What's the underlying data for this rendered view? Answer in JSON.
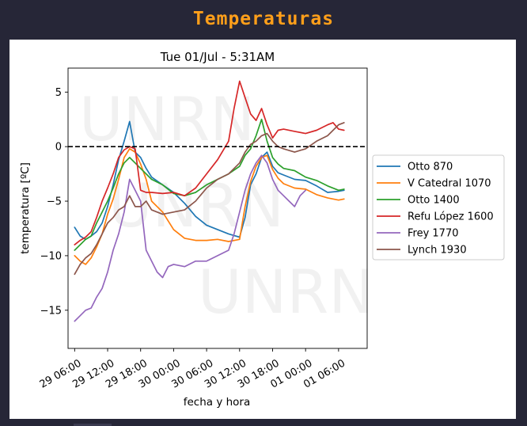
{
  "app": {
    "title": "Temperaturas"
  },
  "chart_data": {
    "type": "line",
    "title": "Tue 01/Jul - 5:31AM",
    "xlabel": "fecha y hora",
    "ylabel": "temperatura [ºC]",
    "watermark": "UNRN",
    "x_unit": "hours since 29 06:00",
    "xlim": [
      -1.2,
      53.2
    ],
    "ylim": [
      -18.5,
      7.2
    ],
    "x_ticks": [
      {
        "value": 0,
        "label": "29 06:00"
      },
      {
        "value": 6,
        "label": "29 12:00"
      },
      {
        "value": 12,
        "label": "29 18:00"
      },
      {
        "value": 18,
        "label": "30 00:00"
      },
      {
        "value": 24,
        "label": "30 06:00"
      },
      {
        "value": 30,
        "label": "30 12:00"
      },
      {
        "value": 36,
        "label": "30 18:00"
      },
      {
        "value": 42,
        "label": "01 00:00"
      },
      {
        "value": 48,
        "label": "01 06:00"
      }
    ],
    "y_ticks": [
      {
        "value": 5,
        "label": "5"
      },
      {
        "value": 0,
        "label": "0"
      },
      {
        "value": -5,
        "label": "−5"
      },
      {
        "value": -10,
        "label": "−10"
      },
      {
        "value": -15,
        "label": "−15"
      }
    ],
    "reference_line": {
      "y": 0,
      "style": "dashed",
      "color": "#000000"
    },
    "legend_position": "right",
    "series": [
      {
        "name": "Otto 870",
        "color": "#1f77b4",
        "x": [
          0,
          1,
          2,
          3,
          4,
          5,
          6,
          7,
          8,
          9,
          10,
          11,
          12,
          13,
          14,
          16,
          18,
          20,
          22,
          24,
          26,
          28,
          30,
          31,
          32,
          33,
          34,
          35,
          36,
          37,
          38,
          40,
          42,
          44,
          46,
          48,
          49
        ],
        "y": [
          -7.4,
          -8.2,
          -8.5,
          -8.2,
          -7.8,
          -7.0,
          -5.5,
          -3.5,
          -1.2,
          0.5,
          2.3,
          -0.5,
          -1.0,
          -2.0,
          -2.8,
          -3.5,
          -4.2,
          -5.2,
          -6.4,
          -7.2,
          -7.6,
          -8.0,
          -8.3,
          -6.5,
          -3.5,
          -2.5,
          -1.0,
          -0.5,
          -1.8,
          -2.4,
          -2.6,
          -3.0,
          -3.1,
          -3.6,
          -4.2,
          -4.1,
          -4.0
        ]
      },
      {
        "name": "V Catedral 1070",
        "color": "#ff7f0e",
        "x": [
          0,
          1,
          2,
          3,
          4,
          5,
          6,
          7,
          8,
          9,
          10,
          11,
          12,
          13,
          14,
          16,
          18,
          20,
          22,
          24,
          26,
          28,
          30,
          31,
          32,
          33,
          34,
          35,
          36,
          37,
          38,
          40,
          42,
          44,
          46,
          48,
          49
        ],
        "y": [
          -10.0,
          -10.5,
          -10.8,
          -10.2,
          -9.2,
          -8.0,
          -6.2,
          -4.8,
          -3.0,
          -1.0,
          -0.2,
          -0.5,
          -1.6,
          -3.0,
          -5.0,
          -6.0,
          -7.6,
          -8.4,
          -8.6,
          -8.6,
          -8.5,
          -8.7,
          -8.5,
          -5.5,
          -3.2,
          -1.8,
          -1.0,
          -0.8,
          -2.1,
          -2.9,
          -3.4,
          -3.8,
          -3.9,
          -4.4,
          -4.7,
          -4.9,
          -4.8
        ]
      },
      {
        "name": "Otto 1400",
        "color": "#2ca02c",
        "x": [
          0,
          1,
          2,
          3,
          4,
          5,
          6,
          7,
          8,
          9,
          10,
          11,
          12,
          13,
          14,
          16,
          18,
          20,
          22,
          24,
          26,
          28,
          30,
          31,
          32,
          33,
          34,
          35,
          36,
          37,
          38,
          40,
          42,
          44,
          46,
          48,
          49
        ],
        "y": [
          -9.5,
          -9.0,
          -8.5,
          -8.2,
          -7.0,
          -6.0,
          -5.0,
          -3.8,
          -2.5,
          -1.5,
          -1.0,
          -1.5,
          -2.0,
          -2.5,
          -3.0,
          -3.5,
          -4.3,
          -4.5,
          -4.2,
          -3.5,
          -3.0,
          -2.5,
          -1.8,
          -0.8,
          -0.2,
          1.0,
          2.5,
          0.5,
          -1.0,
          -1.6,
          -2.0,
          -2.2,
          -2.8,
          -3.1,
          -3.6,
          -4.0,
          -3.9
        ]
      },
      {
        "name": "Refu López 1600",
        "color": "#d62728",
        "x": [
          0,
          1,
          2,
          3,
          4,
          5,
          6,
          7,
          8,
          9,
          10,
          11,
          12,
          13,
          14,
          16,
          18,
          20,
          22,
          24,
          26,
          28,
          29,
          30,
          31,
          32,
          33,
          34,
          35,
          36,
          37,
          38,
          40,
          42,
          44,
          46,
          47,
          48,
          49
        ],
        "y": [
          -9.0,
          -8.6,
          -8.3,
          -7.8,
          -6.5,
          -5.0,
          -3.8,
          -2.5,
          -1.0,
          -0.3,
          0.0,
          -0.2,
          -4.0,
          -4.2,
          -4.2,
          -4.3,
          -4.2,
          -4.5,
          -3.8,
          -2.5,
          -1.2,
          0.5,
          3.5,
          6.0,
          4.5,
          3.0,
          2.4,
          3.5,
          2.0,
          0.8,
          1.5,
          1.6,
          1.4,
          1.2,
          1.5,
          2.0,
          2.2,
          1.6,
          1.5
        ]
      },
      {
        "name": "Frey 1770",
        "color": "#9467bd",
        "x": [
          0,
          1,
          2,
          3,
          4,
          5,
          6,
          7,
          8,
          9,
          10,
          11,
          12,
          13,
          14,
          15,
          16,
          17,
          18,
          20,
          22,
          24,
          26,
          28,
          29,
          30,
          31,
          32,
          33,
          34,
          35,
          36,
          37,
          38,
          39,
          40,
          41,
          42
        ],
        "y": [
          -16.0,
          -15.5,
          -15.0,
          -14.8,
          -13.8,
          -13.0,
          -11.5,
          -9.5,
          -8.0,
          -6.0,
          -3.0,
          -4.0,
          -5.0,
          -9.5,
          -10.5,
          -11.5,
          -12.0,
          -11.0,
          -10.8,
          -11.0,
          -10.5,
          -10.5,
          -10.0,
          -9.5,
          -8.0,
          -6.0,
          -4.0,
          -2.5,
          -1.5,
          -0.8,
          -1.5,
          -3.0,
          -4.0,
          -4.5,
          -5.0,
          -5.5,
          -4.5,
          -4.0
        ]
      },
      {
        "name": "Lynch 1930",
        "color": "#8c564b",
        "x": [
          0,
          1,
          2,
          3,
          4,
          5,
          6,
          7,
          8,
          9,
          10,
          11,
          12,
          13,
          14,
          16,
          18,
          20,
          22,
          24,
          26,
          28,
          30,
          31,
          32,
          33,
          34,
          35,
          36,
          37,
          38,
          40,
          42,
          44,
          46,
          48,
          49
        ],
        "y": [
          -11.7,
          -10.8,
          -10.2,
          -9.8,
          -9.0,
          -8.0,
          -7.0,
          -6.5,
          -5.8,
          -5.5,
          -4.5,
          -5.5,
          -5.5,
          -5.0,
          -5.8,
          -6.2,
          -6.0,
          -5.8,
          -5.0,
          -3.8,
          -3.0,
          -2.5,
          -1.5,
          -0.5,
          0.2,
          0.5,
          1.0,
          1.2,
          0.5,
          0.0,
          -0.2,
          -0.5,
          -0.2,
          0.5,
          1.0,
          2.0,
          2.2
        ]
      }
    ]
  }
}
